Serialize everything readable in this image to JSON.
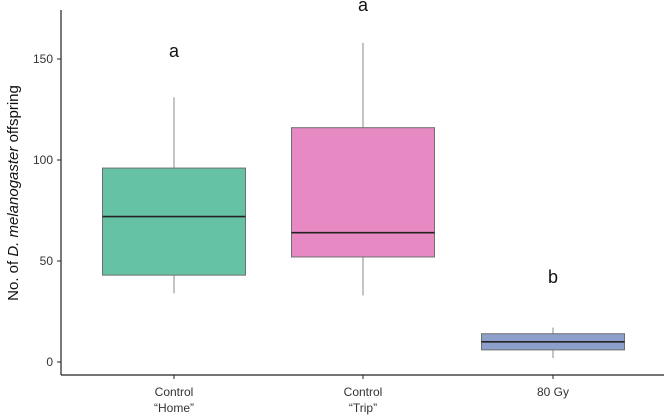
{
  "chart_data": {
    "type": "box",
    "ylabel_prefix": "No. of ",
    "ylabel_species": "D. melanogaster",
    "ylabel_suffix": " offspring",
    "ylim": [
      -5,
      165
    ],
    "yticks": [
      0,
      50,
      100,
      150
    ],
    "grid": false,
    "legend": "none",
    "categories": [
      {
        "line1": "Control",
        "line2": "“Home”"
      },
      {
        "line1": "Control",
        "line2": "“Trip”"
      },
      {
        "line1": "80 Gy",
        "line2": ""
      }
    ],
    "boxes": [
      {
        "min": 34,
        "q1": 43,
        "median": 72,
        "q3": 96,
        "max": 131,
        "color": "#66c2a5",
        "letter": "a"
      },
      {
        "min": 33,
        "q1": 52,
        "median": 64,
        "q3": 116,
        "max": 158,
        "color": "#e78ac3",
        "letter": "a"
      },
      {
        "min": 2,
        "q1": 6,
        "median": 10,
        "q3": 14,
        "max": 17,
        "color": "#8da0cb",
        "letter": "b"
      }
    ],
    "colors": {
      "axis": "#222222",
      "whisker": "#8a8a8a",
      "box_border": "#6f6f6f",
      "median": "#222222"
    }
  }
}
